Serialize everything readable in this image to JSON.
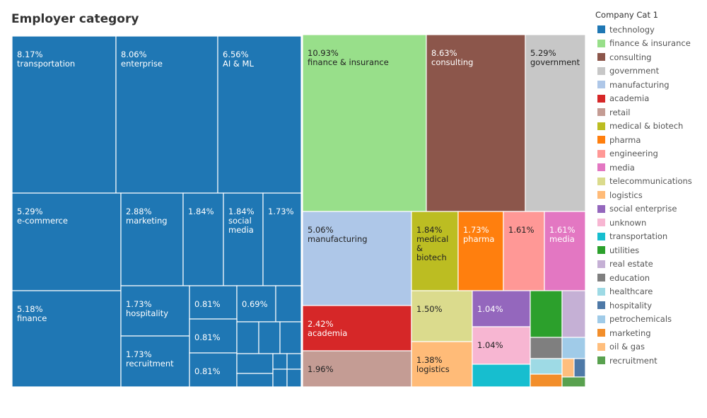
{
  "chart_data": {
    "type": "treemap",
    "title": "Employer category",
    "legend_title": "Company Cat 1",
    "legend_position": "right",
    "categories": [
      {
        "name": "technology",
        "color": "#1f77b4"
      },
      {
        "name": "finance & insurance",
        "color": "#98df8a"
      },
      {
        "name": "consulting",
        "color": "#8c564b"
      },
      {
        "name": "government",
        "color": "#c7c7c7"
      },
      {
        "name": "manufacturing",
        "color": "#aec7e8"
      },
      {
        "name": "academia",
        "color": "#d62728"
      },
      {
        "name": "retail",
        "color": "#c49c94"
      },
      {
        "name": "medical & biotech",
        "color": "#bcbd22"
      },
      {
        "name": "pharma",
        "color": "#ff7f0e"
      },
      {
        "name": "engineering",
        "color": "#ff9896"
      },
      {
        "name": "media",
        "color": "#e377c2"
      },
      {
        "name": "telecommunications",
        "color": "#dbdb8d"
      },
      {
        "name": "logistics",
        "color": "#ffbb78"
      },
      {
        "name": "social enterprise",
        "color": "#9467bd"
      },
      {
        "name": "unknown",
        "color": "#f7b6d2"
      },
      {
        "name": "transportation",
        "color": "#17becf"
      },
      {
        "name": "utilities",
        "color": "#2ca02c"
      },
      {
        "name": "real estate",
        "color": "#c5b0d5"
      },
      {
        "name": "education",
        "color": "#7f7f7f"
      },
      {
        "name": "healthcare",
        "color": "#9edae5"
      },
      {
        "name": "hospitality",
        "color": "#4e79a7"
      },
      {
        "name": "petrochemicals",
        "color": "#a0cbe8"
      },
      {
        "name": "marketing",
        "color": "#f28e2b"
      },
      {
        "name": "oil & gas",
        "color": "#ffbe7d"
      },
      {
        "name": "recruitment",
        "color": "#59a14f"
      }
    ],
    "tiles": [
      {
        "parent": "technology",
        "sub": "transportation",
        "value": 8.17,
        "percent": "8.17%",
        "label": "transportation"
      },
      {
        "parent": "technology",
        "sub": "enterprise",
        "value": 8.06,
        "percent": "8.06%",
        "label": "enterprise"
      },
      {
        "parent": "technology",
        "sub": "AI & ML",
        "value": 6.56,
        "percent": "6.56%",
        "label": "AI & ML"
      },
      {
        "parent": "technology",
        "sub": "e-commerce",
        "value": 5.29,
        "percent": "5.29%",
        "label": "e-commerce"
      },
      {
        "parent": "technology",
        "sub": "marketing",
        "value": 2.88,
        "percent": "2.88%",
        "label": "marketing"
      },
      {
        "parent": "technology",
        "sub": "",
        "value": 1.84,
        "percent": "1.84%",
        "label": ""
      },
      {
        "parent": "technology",
        "sub": "social media",
        "value": 1.84,
        "percent": "1.84%",
        "label": "social media"
      },
      {
        "parent": "technology",
        "sub": "",
        "value": 1.73,
        "percent": "1.73%",
        "label": ""
      },
      {
        "parent": "technology",
        "sub": "finance",
        "value": 5.18,
        "percent": "5.18%",
        "label": "finance"
      },
      {
        "parent": "technology",
        "sub": "hospitality",
        "value": 1.73,
        "percent": "1.73%",
        "label": "hospitality"
      },
      {
        "parent": "technology",
        "sub": "",
        "value": 0.81,
        "percent": "0.81%",
        "label": ""
      },
      {
        "parent": "technology",
        "sub": "",
        "value": 0.69,
        "percent": "0.69%",
        "label": ""
      },
      {
        "parent": "technology",
        "sub": "",
        "value": 0.46,
        "percent": "",
        "label": ""
      },
      {
        "parent": "technology",
        "sub": "recruitment",
        "value": 1.73,
        "percent": "1.73%",
        "label": "recruitment"
      },
      {
        "parent": "technology",
        "sub": "",
        "value": 0.81,
        "percent": "0.81%",
        "label": ""
      },
      {
        "parent": "technology",
        "sub": "",
        "value": 0.81,
        "percent": "0.81%",
        "label": ""
      },
      {
        "parent": "technology",
        "sub": "",
        "value": 0.35,
        "percent": "",
        "label": ""
      },
      {
        "parent": "technology",
        "sub": "",
        "value": 0.35,
        "percent": "",
        "label": ""
      },
      {
        "parent": "technology",
        "sub": "",
        "value": 0.35,
        "percent": "",
        "label": ""
      },
      {
        "parent": "technology",
        "sub": "",
        "value": 0.23,
        "percent": "",
        "label": ""
      },
      {
        "parent": "technology",
        "sub": "",
        "value": 0.12,
        "percent": "",
        "label": ""
      },
      {
        "parent": "technology",
        "sub": "",
        "value": 0.12,
        "percent": "",
        "label": ""
      },
      {
        "parent": "technology",
        "sub": "",
        "value": 0.23,
        "percent": "",
        "label": ""
      },
      {
        "parent": "technology",
        "sub": "",
        "value": 0.12,
        "percent": "",
        "label": ""
      },
      {
        "parent": "technology",
        "sub": "",
        "value": 0.12,
        "percent": "",
        "label": ""
      },
      {
        "parent": "finance & insurance",
        "value": 10.93,
        "percent": "10.93%",
        "label": "finance & insurance"
      },
      {
        "parent": "consulting",
        "value": 8.63,
        "percent": "8.63%",
        "label": "consulting"
      },
      {
        "parent": "government",
        "value": 5.29,
        "percent": "5.29%",
        "label": "government"
      },
      {
        "parent": "manufacturing",
        "value": 5.06,
        "percent": "5.06%",
        "label": "manufacturing"
      },
      {
        "parent": "academia",
        "value": 2.42,
        "percent": "2.42%",
        "label": "academia"
      },
      {
        "parent": "retail",
        "value": 1.96,
        "percent": "1.96%",
        "label": ""
      },
      {
        "parent": "medical & biotech",
        "value": 1.84,
        "percent": "1.84%",
        "label": "medical & biotech"
      },
      {
        "parent": "pharma",
        "value": 1.73,
        "percent": "1.73%",
        "label": "pharma"
      },
      {
        "parent": "engineering",
        "value": 1.61,
        "percent": "1.61%",
        "label": ""
      },
      {
        "parent": "media",
        "value": 1.61,
        "percent": "1.61%",
        "label": "media"
      },
      {
        "parent": "telecommunications",
        "value": 1.5,
        "percent": "1.50%",
        "label": ""
      },
      {
        "parent": "logistics",
        "value": 1.38,
        "percent": "1.38%",
        "label": "logistics"
      },
      {
        "parent": "social enterprise",
        "value": 1.04,
        "percent": "1.04%",
        "label": ""
      },
      {
        "parent": "unknown",
        "value": 1.04,
        "percent": "1.04%",
        "label": ""
      },
      {
        "parent": "transportation",
        "value": 0.69,
        "percent": "",
        "label": ""
      },
      {
        "parent": "utilities",
        "value": 0.69,
        "percent": "",
        "label": ""
      },
      {
        "parent": "real estate",
        "value": 0.69,
        "percent": "",
        "label": ""
      },
      {
        "parent": "education",
        "value": 0.35,
        "percent": "",
        "label": ""
      },
      {
        "parent": "petrochemicals",
        "value": 0.23,
        "percent": "",
        "label": ""
      },
      {
        "parent": "healthcare",
        "value": 0.23,
        "percent": "",
        "label": ""
      },
      {
        "parent": "marketing",
        "value": 0.12,
        "percent": "",
        "label": ""
      },
      {
        "parent": "oil & gas",
        "value": 0.12,
        "percent": "",
        "label": ""
      },
      {
        "parent": "hospitality",
        "value": 0.23,
        "percent": "",
        "label": ""
      },
      {
        "parent": "recruitment",
        "value": 0.12,
        "percent": "",
        "label": ""
      }
    ]
  }
}
